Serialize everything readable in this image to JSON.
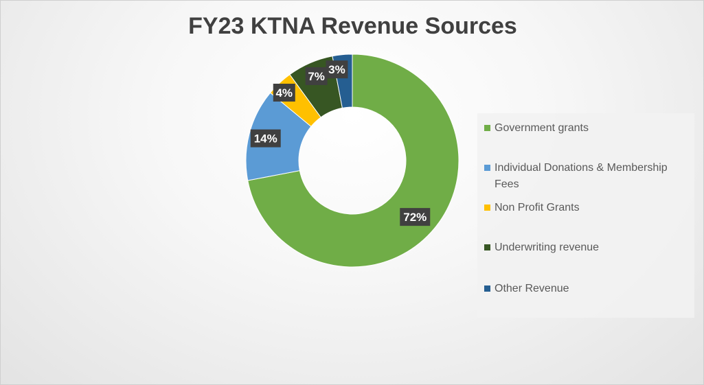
{
  "chart_data": {
    "type": "pie",
    "title": "FY23 KTNA Revenue Sources",
    "legend_position": "right",
    "donut": true,
    "categories": [
      "Government grants",
      "Individual Donations & Membership Fees",
      "Non Profit Grants",
      "Underwriting revenue",
      "Other Revenue"
    ],
    "values": [
      72,
      14,
      4,
      7,
      3
    ],
    "data_labels": [
      "72%",
      "14%",
      "4%",
      "7%",
      "3%"
    ],
    "colors": [
      "#70AD47",
      "#5B9BD5",
      "#FFC000",
      "#375623",
      "#255E91"
    ],
    "legend_order": [
      0,
      1,
      2,
      3,
      4
    ]
  }
}
